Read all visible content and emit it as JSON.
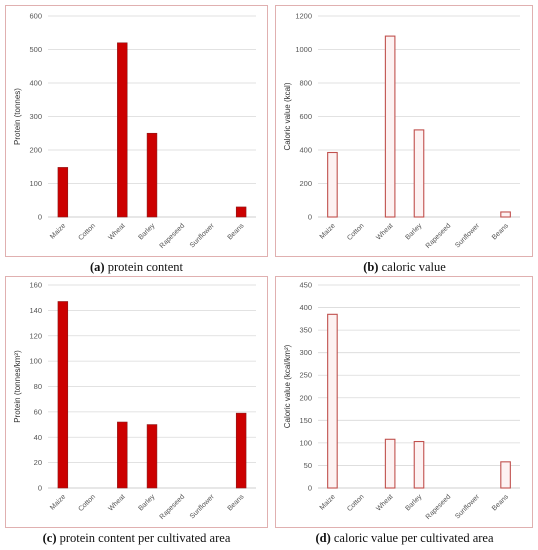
{
  "colors": {
    "bar_fill_solid": "#cc0000",
    "bar_edge": "#c0504d",
    "bar_fill_pale": "#fdf2f2",
    "grid": "#d9d9d9",
    "axis": "#bfbfbf"
  },
  "chart_data": [
    {
      "id": "a",
      "type": "bar",
      "style": "solid",
      "caption_letter": "(a)",
      "caption_text": " protein content",
      "categories": [
        "Maize",
        "Cotton",
        "Wheat",
        "Barley",
        "Rapeseed",
        "Sunflower",
        "Beans"
      ],
      "values": [
        148,
        0,
        520,
        250,
        0,
        0,
        30
      ],
      "ylabel": "Protein (tonnes)",
      "ylim": [
        0,
        600
      ],
      "yticks": [
        0,
        100,
        200,
        300,
        400,
        500,
        600
      ],
      "grid": true
    },
    {
      "id": "b",
      "type": "bar",
      "style": "outline",
      "caption_letter": "(b)",
      "caption_text": " caloric value",
      "categories": [
        "Maize",
        "Cotton",
        "Wheat",
        "Barley",
        "Rapeseed",
        "Sunflower",
        "Beans"
      ],
      "values": [
        385,
        0,
        1080,
        520,
        0,
        0,
        30
      ],
      "ylabel": "Caloric value (kcal)",
      "ylim": [
        0,
        1200
      ],
      "yticks": [
        0,
        200,
        400,
        600,
        800,
        1000,
        1200
      ],
      "grid": true
    },
    {
      "id": "c",
      "type": "bar",
      "style": "solid",
      "caption_letter": "(c)",
      "caption_text": " protein content per cultivated area",
      "categories": [
        "Maize",
        "Cotton",
        "Wheat",
        "Barley",
        "Rapeseed",
        "Sunflower",
        "Beans"
      ],
      "values": [
        147,
        0,
        52,
        50,
        0,
        0,
        59
      ],
      "ylabel": "Protein (tonnes/km²)",
      "ylim": [
        0,
        160
      ],
      "yticks": [
        0,
        20,
        40,
        60,
        80,
        100,
        120,
        140,
        160
      ],
      "grid": true
    },
    {
      "id": "d",
      "type": "bar",
      "style": "outline",
      "caption_letter": "(d)",
      "caption_text": " caloric value per cultivated area",
      "categories": [
        "Maize",
        "Cotton",
        "Wheat",
        "Barley",
        "Rapeseed",
        "Sunflower",
        "Beans"
      ],
      "values": [
        385,
        0,
        108,
        103,
        0,
        0,
        58
      ],
      "ylabel": "Caloric value (kcal/km²)",
      "ylim": [
        0,
        450
      ],
      "yticks": [
        0,
        50,
        100,
        150,
        200,
        250,
        300,
        350,
        400,
        450
      ],
      "grid": true
    }
  ]
}
